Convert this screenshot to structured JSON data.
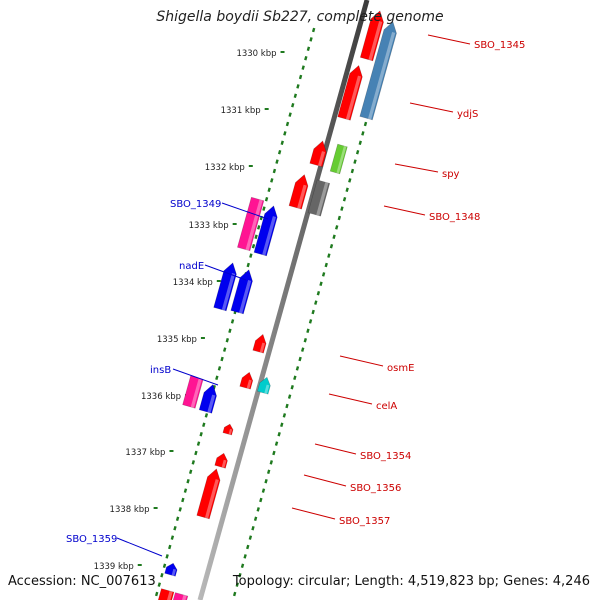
{
  "title": "Shigella boydii Sb227, complete genome",
  "accession_text": "Accession: NC_007613",
  "summary_text": "Topology: circular; Length: 4,519,823 bp; Genes: 4,246",
  "colors": {
    "backbone": "#7a7a7a",
    "tick": "#1f7a1f",
    "forward_label": "#0000cc",
    "reverse_label": "#cc0000",
    "gene_red": "#ff0000",
    "gene_blue": "#0000ee",
    "gene_pink": "#ff1493",
    "gene_steel": "#4682b4",
    "gene_gray": "#666666",
    "gene_cyan": "#00cccc",
    "gene_green": "#66cc33"
  },
  "ruler": [
    "1330 kbp",
    "1331 kbp",
    "1332 kbp",
    "1333 kbp",
    "1334 kbp",
    "1335 kbp",
    "1336 kbp",
    "1337 kbp",
    "1338 kbp",
    "1339 kbp"
  ],
  "forward_labels": [
    "SBO_1349",
    "nadE",
    "insB",
    "SBO_1359"
  ],
  "reverse_labels": [
    "SBO_1345",
    "ydjS",
    "spy",
    "SBO_1348",
    "osmE",
    "celA",
    "SBO_1354",
    "SBO_1356",
    "SBO_1357"
  ]
}
